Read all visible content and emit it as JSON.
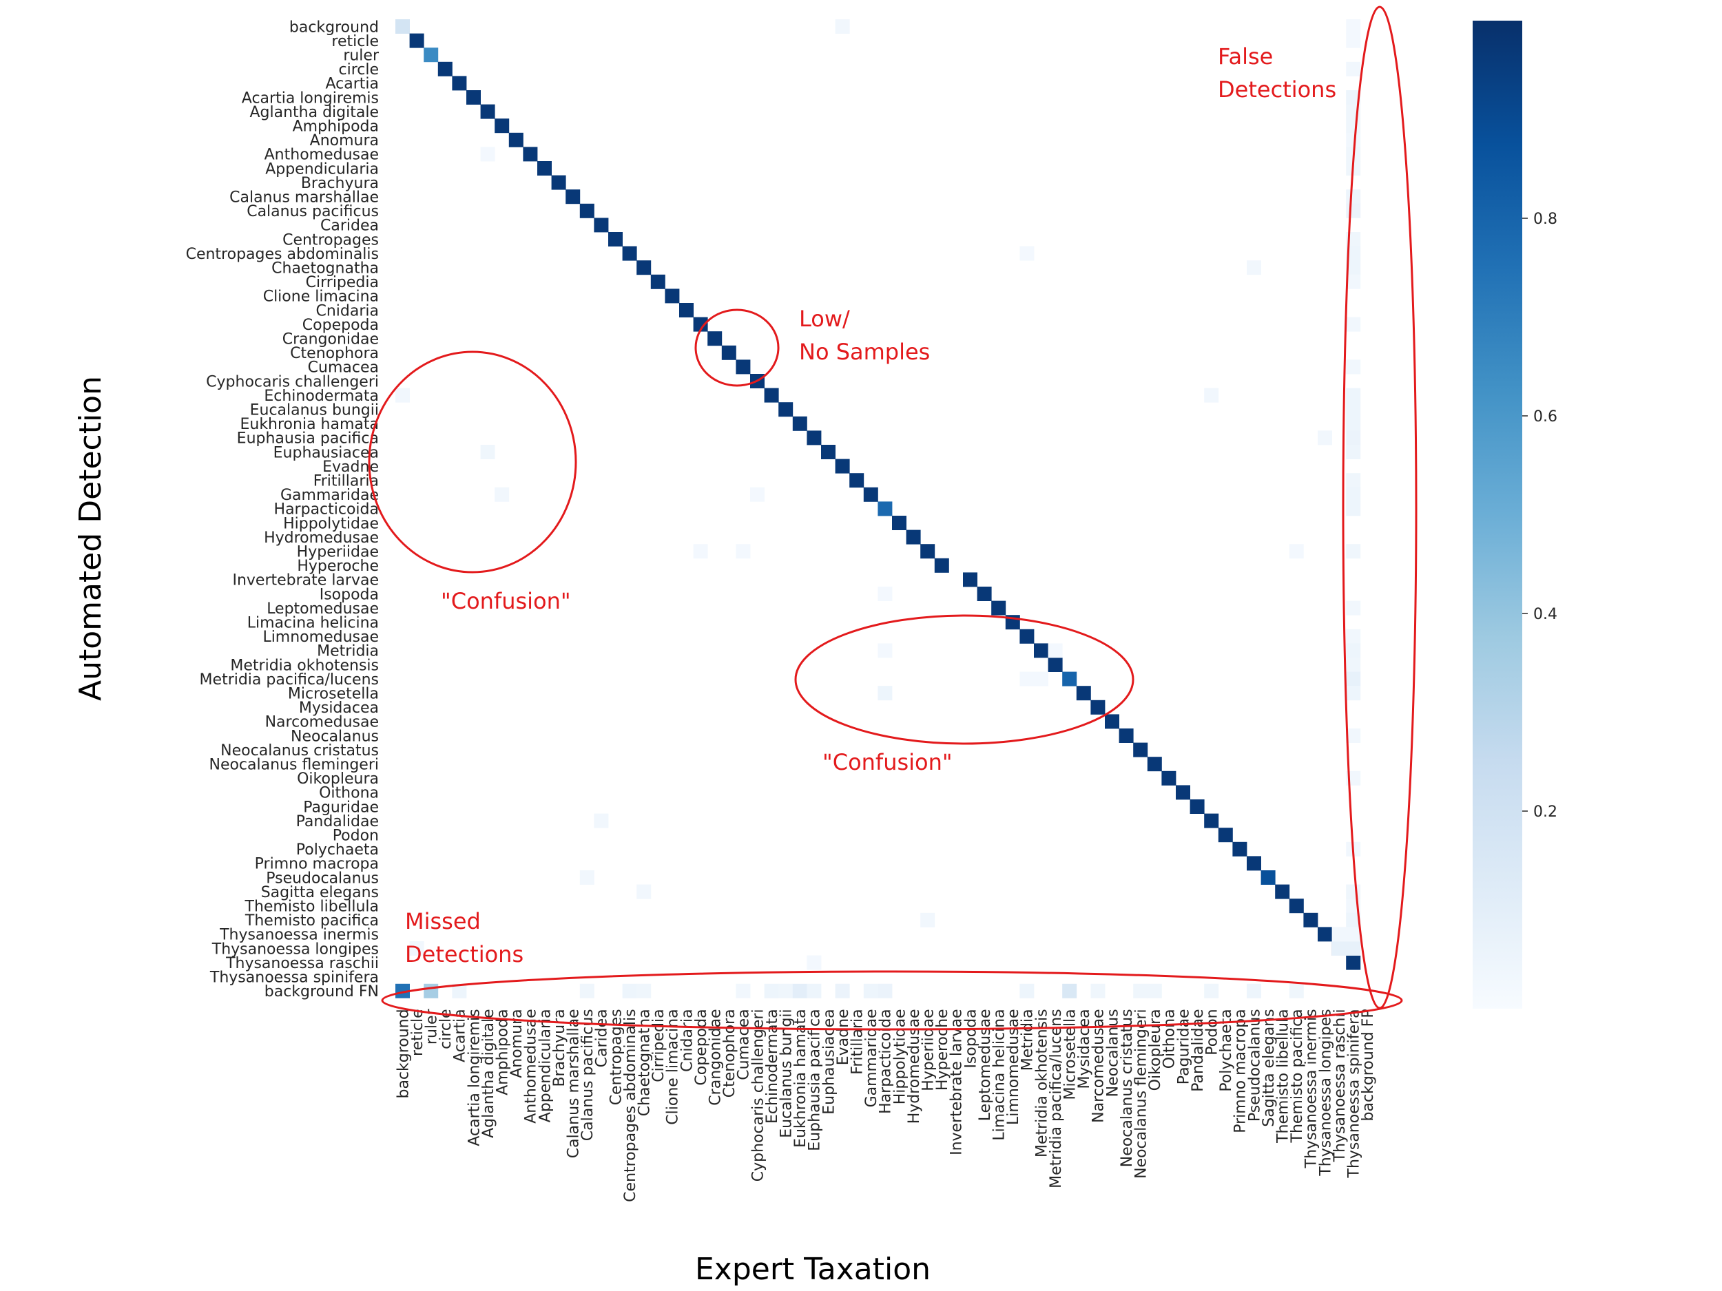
{
  "chart_data": {
    "type": "heatmap",
    "title": "",
    "xlabel": "Expert Taxation",
    "ylabel": "Automated Detection",
    "x_categories": [
      "background",
      "reticle",
      "ruler",
      "circle",
      "Acartia",
      "Acartia longiremis",
      "Aglantha digitale",
      "Amphipoda",
      "Anomura",
      "Anthomedusae",
      "Appendicularia",
      "Brachyura",
      "Calanus marshallae",
      "Calanus pacificus",
      "Caridea",
      "Centropages",
      "Centropages abdominalis",
      "Chaetognatha",
      "Cirripedia",
      "Clione limacina",
      "Cnidaria",
      "Copepoda",
      "Crangonidae",
      "Ctenophora",
      "Cumacea",
      "Cyphocaris challengeri",
      "Echinodermata",
      "Eucalanus bungii",
      "Eukhronia hamata",
      "Euphausia pacifica",
      "Euphausiacea",
      "Evadne",
      "Fritillaria",
      "Gammaridae",
      "Harpacticoida",
      "Hippolytidae",
      "Hydromedusae",
      "Hyperiidae",
      "Hyperoche",
      "Invertebrate larvae",
      "Isopoda",
      "Leptomedusae",
      "Limacina helicina",
      "Limnomedusae",
      "Metridia",
      "Metridia okhotensis",
      "Metridia pacifica/lucens",
      "Microsetella",
      "Mysidacea",
      "Narcomedusae",
      "Neocalanus",
      "Neocalanus cristatus",
      "Neocalanus flemingeri",
      "Oikopleura",
      "Oithona",
      "Paguridae",
      "Pandalidae",
      "Podon",
      "Polychaeta",
      "Primno macropa",
      "Pseudocalanus",
      "Sagitta elegans",
      "Themisto libellula",
      "Themisto pacifica",
      "Thysanoessa inermis",
      "Thysanoessa longipes",
      "Thysanoessa raschii",
      "Thysanoessa spinifera",
      "background FP"
    ],
    "y_categories": [
      "background",
      "reticle",
      "ruler",
      "circle",
      "Acartia",
      "Acartia longiremis",
      "Aglantha digitale",
      "Amphipoda",
      "Anomura",
      "Anthomedusae",
      "Appendicularia",
      "Brachyura",
      "Calanus marshallae",
      "Calanus pacificus",
      "Caridea",
      "Centropages",
      "Centropages abdominalis",
      "Chaetognatha",
      "Cirripedia",
      "Clione limacina",
      "Cnidaria",
      "Copepoda",
      "Crangonidae",
      "Ctenophora",
      "Cumacea",
      "Cyphocaris challengeri",
      "Echinodermata",
      "Eucalanus bungii",
      "Eukhronia hamata",
      "Euphausia pacifica",
      "Euphausiacea",
      "Evadne",
      "Fritillaria",
      "Gammaridae",
      "Harpacticoida",
      "Hippolytidae",
      "Hydromedusae",
      "Hyperiidae",
      "Hyperoche",
      "Invertebrate larvae",
      "Isopoda",
      "Leptomedusae",
      "Limacina helicina",
      "Limnomedusae",
      "Metridia",
      "Metridia okhotensis",
      "Metridia pacifica/lucens",
      "Microsetella",
      "Mysidacea",
      "Narcomedusae",
      "Neocalanus",
      "Neocalanus cristatus",
      "Neocalanus flemingeri",
      "Oikopleura",
      "Oithona",
      "Paguridae",
      "Pandalidae",
      "Podon",
      "Polychaeta",
      "Primno macropa",
      "Pseudocalanus",
      "Sagitta elegans",
      "Themisto libellula",
      "Themisto pacifica",
      "Thysanoessa inermis",
      "Thysanoessa longipes",
      "Thysanoessa raschii",
      "Thysanoessa spinifera",
      "background FN"
    ],
    "cells": [
      [
        0,
        0,
        0.18
      ],
      [
        1,
        1,
        0.97
      ],
      [
        2,
        2,
        0.65
      ],
      [
        3,
        3,
        0.97
      ],
      [
        4,
        4,
        0.97
      ],
      [
        5,
        5,
        0.97
      ],
      [
        6,
        6,
        0.97
      ],
      [
        7,
        7,
        0.97
      ],
      [
        8,
        8,
        0.97
      ],
      [
        9,
        9,
        0.97
      ],
      [
        10,
        10,
        0.97
      ],
      [
        11,
        11,
        0.97
      ],
      [
        12,
        12,
        0.97
      ],
      [
        13,
        13,
        0.97
      ],
      [
        14,
        14,
        0.97
      ],
      [
        15,
        15,
        0.97
      ],
      [
        16,
        16,
        0.97
      ],
      [
        17,
        17,
        0.97
      ],
      [
        18,
        18,
        0.97
      ],
      [
        19,
        19,
        0.97
      ],
      [
        20,
        20,
        0.97
      ],
      [
        21,
        21,
        0.97
      ],
      [
        22,
        22,
        0.97
      ],
      [
        23,
        23,
        0.97
      ],
      [
        24,
        24,
        0.97
      ],
      [
        25,
        25,
        0.97
      ],
      [
        26,
        26,
        0.97
      ],
      [
        27,
        27,
        0.97
      ],
      [
        28,
        28,
        0.97
      ],
      [
        29,
        29,
        0.97
      ],
      [
        30,
        30,
        0.97
      ],
      [
        31,
        31,
        0.97
      ],
      [
        32,
        32,
        0.97
      ],
      [
        33,
        33,
        0.97
      ],
      [
        34,
        34,
        0.78
      ],
      [
        35,
        35,
        0.97
      ],
      [
        36,
        36,
        0.97
      ],
      [
        37,
        37,
        0.97
      ],
      [
        38,
        38,
        0.97
      ],
      [
        39,
        40,
        0.97
      ],
      [
        40,
        41,
        0.97
      ],
      [
        41,
        42,
        0.97
      ],
      [
        42,
        43,
        0.97
      ],
      [
        43,
        44,
        0.97
      ],
      [
        44,
        45,
        0.97
      ],
      [
        45,
        46,
        0.97
      ],
      [
        46,
        47,
        0.8
      ],
      [
        47,
        48,
        0.97
      ],
      [
        48,
        49,
        0.97
      ],
      [
        49,
        50,
        0.97
      ],
      [
        50,
        51,
        0.97
      ],
      [
        51,
        52,
        0.97
      ],
      [
        52,
        53,
        0.97
      ],
      [
        53,
        54,
        0.97
      ],
      [
        54,
        55,
        0.97
      ],
      [
        55,
        56,
        0.97
      ],
      [
        56,
        57,
        0.97
      ],
      [
        57,
        58,
        0.97
      ],
      [
        58,
        59,
        0.97
      ],
      [
        59,
        60,
        0.97
      ],
      [
        60,
        61,
        0.88
      ],
      [
        61,
        62,
        0.97
      ],
      [
        62,
        63,
        0.97
      ],
      [
        63,
        64,
        0.97
      ],
      [
        64,
        65,
        0.97
      ],
      [
        65,
        66,
        0.97
      ],
      [
        66,
        67,
        0.97
      ],
      [
        0,
        31,
        0.03
      ],
      [
        9,
        6,
        0.02
      ],
      [
        26,
        0,
        0.03
      ],
      [
        30,
        6,
        0.04
      ],
      [
        33,
        7,
        0.03
      ],
      [
        33,
        25,
        0.02
      ],
      [
        37,
        21,
        0.02
      ],
      [
        37,
        24,
        0.02
      ],
      [
        16,
        44,
        0.02
      ],
      [
        17,
        60,
        0.03
      ],
      [
        26,
        57,
        0.03
      ],
      [
        37,
        63,
        0.02
      ],
      [
        40,
        34,
        0.02
      ],
      [
        44,
        34,
        0.02
      ],
      [
        44,
        46,
        0.02
      ],
      [
        46,
        44,
        0.02
      ],
      [
        46,
        45,
        0.02
      ],
      [
        47,
        34,
        0.05
      ],
      [
        56,
        14,
        0.03
      ],
      [
        60,
        13,
        0.03
      ],
      [
        61,
        17,
        0.03
      ],
      [
        63,
        37,
        0.03
      ],
      [
        29,
        65,
        0.03
      ],
      [
        65,
        1,
        0.03
      ],
      [
        65,
        66,
        0.08
      ],
      [
        65,
        67,
        0.08
      ],
      [
        66,
        29,
        0.02
      ],
      [
        64,
        66,
        0.03
      ],
      [
        64,
        67,
        0.03
      ],
      [
        68,
        0,
        0.75
      ],
      [
        68,
        2,
        0.35
      ],
      [
        68,
        4,
        0.05
      ],
      [
        68,
        13,
        0.04
      ],
      [
        68,
        16,
        0.05
      ],
      [
        68,
        17,
        0.04
      ],
      [
        68,
        24,
        0.03
      ],
      [
        68,
        26,
        0.05
      ],
      [
        68,
        27,
        0.04
      ],
      [
        68,
        28,
        0.1
      ],
      [
        68,
        29,
        0.05
      ],
      [
        68,
        31,
        0.06
      ],
      [
        68,
        33,
        0.05
      ],
      [
        68,
        34,
        0.06
      ],
      [
        68,
        44,
        0.05
      ],
      [
        68,
        47,
        0.15
      ],
      [
        68,
        49,
        0.04
      ],
      [
        68,
        52,
        0.04
      ],
      [
        68,
        53,
        0.04
      ],
      [
        68,
        57,
        0.04
      ],
      [
        68,
        60,
        0.05
      ],
      [
        68,
        63,
        0.04
      ],
      [
        1,
        67,
        0.02
      ],
      [
        3,
        67,
        0.03
      ],
      [
        5,
        67,
        0.05
      ],
      [
        6,
        67,
        0.04
      ],
      [
        7,
        67,
        0.04
      ],
      [
        8,
        67,
        0.03
      ],
      [
        9,
        67,
        0.04
      ],
      [
        10,
        67,
        0.04
      ],
      [
        12,
        67,
        0.05
      ],
      [
        13,
        67,
        0.06
      ],
      [
        15,
        67,
        0.04
      ],
      [
        16,
        67,
        0.05
      ],
      [
        17,
        67,
        0.05
      ],
      [
        18,
        67,
        0.03
      ],
      [
        21,
        67,
        0.03
      ],
      [
        24,
        67,
        0.03
      ],
      [
        26,
        67,
        0.05
      ],
      [
        27,
        67,
        0.05
      ],
      [
        28,
        67,
        0.05
      ],
      [
        29,
        67,
        0.06
      ],
      [
        30,
        67,
        0.05
      ],
      [
        32,
        67,
        0.04
      ],
      [
        33,
        67,
        0.05
      ],
      [
        34,
        67,
        0.05
      ],
      [
        37,
        67,
        0.04
      ],
      [
        41,
        67,
        0.03
      ],
      [
        43,
        67,
        0.03
      ],
      [
        44,
        67,
        0.05
      ],
      [
        45,
        67,
        0.04
      ],
      [
        46,
        67,
        0.08
      ],
      [
        47,
        67,
        0.05
      ],
      [
        50,
        67,
        0.03
      ],
      [
        53,
        67,
        0.03
      ],
      [
        58,
        67,
        0.03
      ],
      [
        61,
        67,
        0.04
      ],
      [
        62,
        67,
        0.03
      ],
      [
        63,
        67,
        0.05
      ],
      [
        0,
        67,
        0.02
      ]
    ],
    "colorbar": {
      "colormap": "Blues",
      "ticks": [
        "0.2",
        "0.4",
        "0.6",
        "0.8"
      ],
      "range": [
        0,
        1
      ]
    },
    "annotations": [
      {
        "lines": [
          "False",
          "Detections"
        ]
      },
      {
        "lines": [
          "Low/",
          "No Samples"
        ]
      },
      {
        "lines": [
          "\"Confusion\""
        ]
      },
      {
        "lines": [
          "\"Confusion\""
        ]
      },
      {
        "lines": [
          "Missed",
          "Detections"
        ]
      }
    ],
    "grid": false,
    "legend": "colorbar-right"
  }
}
